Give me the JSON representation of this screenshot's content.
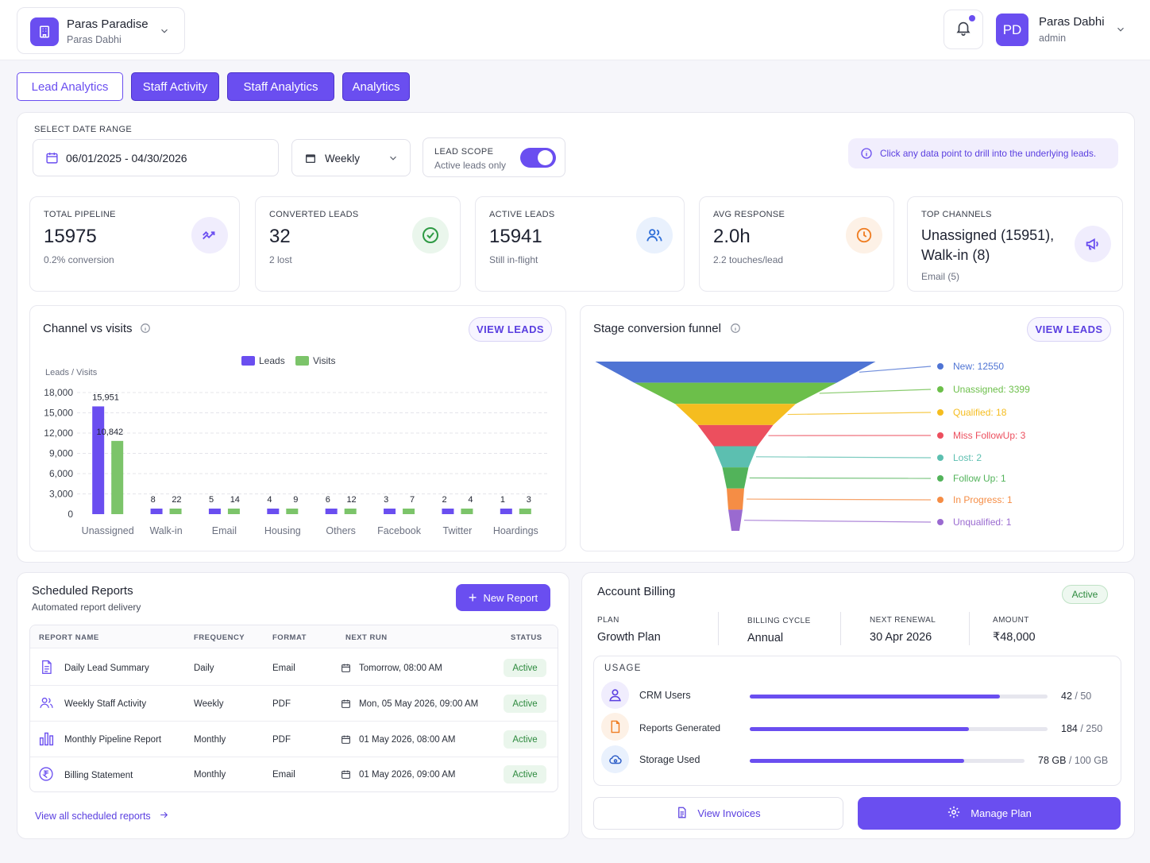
{
  "header": {
    "org_name": "Paras Paradise",
    "org_sub": "Paras Dabhi",
    "user_initials": "PD",
    "user_name": "Paras Dabhi",
    "user_role": "admin"
  },
  "tabs": [
    "Lead Analytics",
    "Staff Activity",
    "Staff Analytics",
    "Analytics"
  ],
  "filters": {
    "date_range_label": "SELECT DATE RANGE",
    "date_range_value": "06/01/2025 - 04/30/2026",
    "period": "Weekly",
    "scope_label": "LEAD SCOPE",
    "scope_sub": "Active leads only",
    "scope_enabled": true,
    "hint": "Click any data point to drill into the underlying leads."
  },
  "kpis": [
    {
      "label": "TOTAL PIPELINE",
      "value": "15975",
      "sub": "0.2% conversion",
      "icon": "trend-up-icon"
    },
    {
      "label": "CONVERTED LEADS",
      "value": "32",
      "sub": "2 lost",
      "icon": "check-circle-icon"
    },
    {
      "label": "ACTIVE LEADS",
      "value": "15941",
      "sub": "Still in-flight",
      "icon": "users-icon"
    },
    {
      "label": "AVG RESPONSE",
      "value": "2.0h",
      "sub": "2.2 touches/lead",
      "icon": "clock-icon"
    },
    {
      "label": "TOP CHANNELS",
      "value_line1": "Unassigned (15951),",
      "value_line2": "Walk-in (8)",
      "sub": "Email (5)",
      "icon": "megaphone-icon"
    }
  ],
  "channel_chart": {
    "title": "Channel vs visits",
    "view_leads": "VIEW LEADS"
  },
  "funnel_chart": {
    "title": "Stage conversion funnel",
    "view_leads": "VIEW LEADS"
  },
  "chart_data": [
    {
      "type": "bar",
      "ylabel": "Leads / Visits",
      "ylim": [
        0,
        18000
      ],
      "yticks": [
        "18,000",
        "15,000",
        "12,000",
        "9,000",
        "6,000",
        "3,000",
        "0"
      ],
      "ytick_values": [
        18000,
        15000,
        12000,
        9000,
        6000,
        3000,
        0
      ],
      "categories": [
        "Unassigned",
        "Walk-in",
        "Email",
        "Housing",
        "Others",
        "Facebook",
        "Twitter",
        "Hoardings"
      ],
      "series": [
        {
          "name": "Leads",
          "color": "#6a4ef0",
          "values": [
            15951,
            8,
            5,
            4,
            6,
            3,
            2,
            1
          ],
          "labels": [
            "15,951",
            "8",
            "5",
            "4",
            "6",
            "3",
            "2",
            "1"
          ]
        },
        {
          "name": "Visits",
          "color": "#7cc46a",
          "values": [
            10842,
            22,
            14,
            9,
            12,
            7,
            4,
            3
          ],
          "labels": [
            "10,842",
            "22",
            "14",
            "9",
            "12",
            "7",
            "4",
            "3"
          ]
        }
      ],
      "legend": "top-center",
      "grid": true
    },
    {
      "type": "funnel",
      "stages": [
        {
          "label": "New: 12550",
          "value": 12550,
          "color": "#4f74d4"
        },
        {
          "label": "Unassigned: 3399",
          "value": 3399,
          "color": "#6cbf4a"
        },
        {
          "label": "Qualified: 18",
          "value": 18,
          "color": "#f5bd1f"
        },
        {
          "label": "Miss FollowUp: 3",
          "value": 3,
          "color": "#ec4f5e"
        },
        {
          "label": "Lost: 2",
          "value": 2,
          "color": "#5cbfb0"
        },
        {
          "label": "Follow Up: 1",
          "value": 1,
          "color": "#52b35a"
        },
        {
          "label": "In Progress: 1",
          "value": 1,
          "color": "#f58d45"
        },
        {
          "label": "Unqualified: 1",
          "value": 1,
          "color": "#9a6ad0"
        }
      ]
    }
  ],
  "reports": {
    "title": "Scheduled Reports",
    "subtitle": "Automated report delivery",
    "new_button": "New Report",
    "columns": [
      "REPORT NAME",
      "FREQUENCY",
      "FORMAT",
      "NEXT RUN",
      "STATUS"
    ],
    "rows": [
      {
        "name": "Daily Lead Summary",
        "frequency": "Daily",
        "format": "Email",
        "next_run": "Tomorrow, 08:00 AM",
        "status": "Active",
        "icon": "document-icon"
      },
      {
        "name": "Weekly Staff Activity",
        "frequency": "Weekly",
        "format": "PDF",
        "next_run": "Mon, 05 May 2026, 09:00 AM",
        "status": "Active",
        "icon": "users-icon"
      },
      {
        "name": "Monthly Pipeline Report",
        "frequency": "Monthly",
        "format": "PDF",
        "next_run": "01 May 2026, 08:00 AM",
        "status": "Active",
        "icon": "bar-chart-icon"
      },
      {
        "name": "Billing Statement",
        "frequency": "Monthly",
        "format": "Email",
        "next_run": "01 May 2026, 09:00 AM",
        "status": "Active",
        "icon": "rupee-icon"
      }
    ],
    "view_all": "View all scheduled reports"
  },
  "billing": {
    "title": "Account Billing",
    "status": "Active",
    "plan_label": "PLAN",
    "plan": "Growth Plan",
    "cycle_label": "BILLING CYCLE",
    "cycle": "Annual",
    "renewal_label": "NEXT RENEWAL",
    "renewal": "30 Apr 2026",
    "amount_label": "AMOUNT",
    "amount": "₹48,000",
    "usage_label": "USAGE",
    "usage": [
      {
        "name": "CRM Users",
        "used": "42",
        "total": "/ 50",
        "fraction": 0.84,
        "icon": "user-icon"
      },
      {
        "name": "Reports Generated",
        "used": "184",
        "total": "/ 250",
        "fraction": 0.736,
        "icon": "file-icon"
      },
      {
        "name": "Storage Used",
        "used": "78 GB",
        "total": "/ 100 GB",
        "fraction": 0.78,
        "icon": "cloud-icon"
      }
    ],
    "view_invoices": "View Invoices",
    "manage_plan": "Manage Plan"
  }
}
